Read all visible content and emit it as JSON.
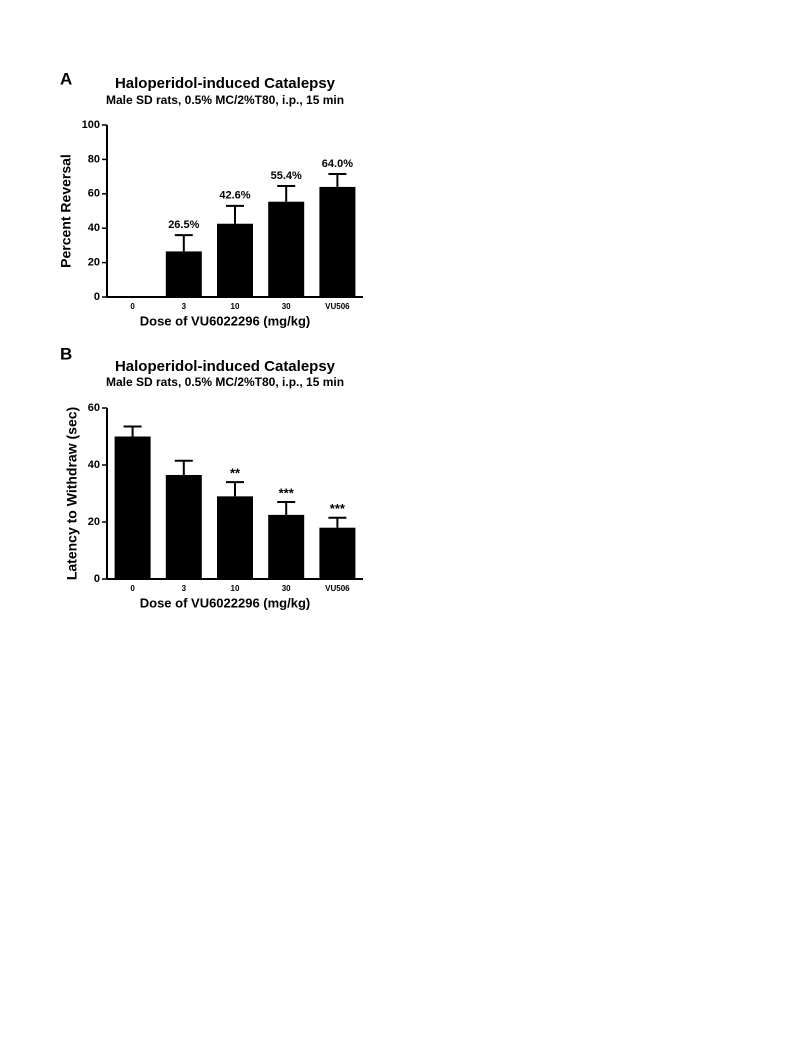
{
  "chart_data": [
    {
      "type": "bar",
      "panel": "A",
      "title": "Haloperidol-induced Catalepsy",
      "subtitle": "Male SD rats, 0.5% MC/2%T80, i.p., 15 min",
      "x_label": "Dose of VU6022296 (mg/kg)",
      "y_label": "Percent Reversal",
      "categories": [
        "0",
        "3",
        "10",
        "30",
        "VU506"
      ],
      "values": [
        0,
        26.5,
        42.6,
        55.4,
        64.0
      ],
      "errors": [
        0,
        9.5,
        10.4,
        9.1,
        7.5
      ],
      "value_labels": [
        null,
        "26.5%",
        "42.6%",
        "55.4%",
        "64.0%"
      ],
      "color": "#000000",
      "ylim": [
        0,
        100
      ],
      "yticks": [
        0,
        20,
        40,
        60,
        80,
        100
      ]
    },
    {
      "type": "bar",
      "panel": "B",
      "title": "Haloperidol-induced Catalepsy",
      "subtitle": "Male SD rats, 0.5% MC/2%T80, i.p., 15 min",
      "x_label": "Dose of VU6022296 (mg/kg)",
      "y_label": "Latency to Withdraw (sec)",
      "categories": [
        "0",
        "3",
        "10",
        "30",
        "VU506"
      ],
      "values": [
        50,
        36.5,
        29,
        22.5,
        18
      ],
      "errors": [
        3.5,
        5,
        5,
        4.5,
        3.5
      ],
      "annotations": [
        null,
        null,
        "**",
        "***",
        "***"
      ],
      "color": "#000000",
      "ylim": [
        0,
        60
      ],
      "yticks": [
        0,
        20,
        40,
        60
      ]
    }
  ]
}
